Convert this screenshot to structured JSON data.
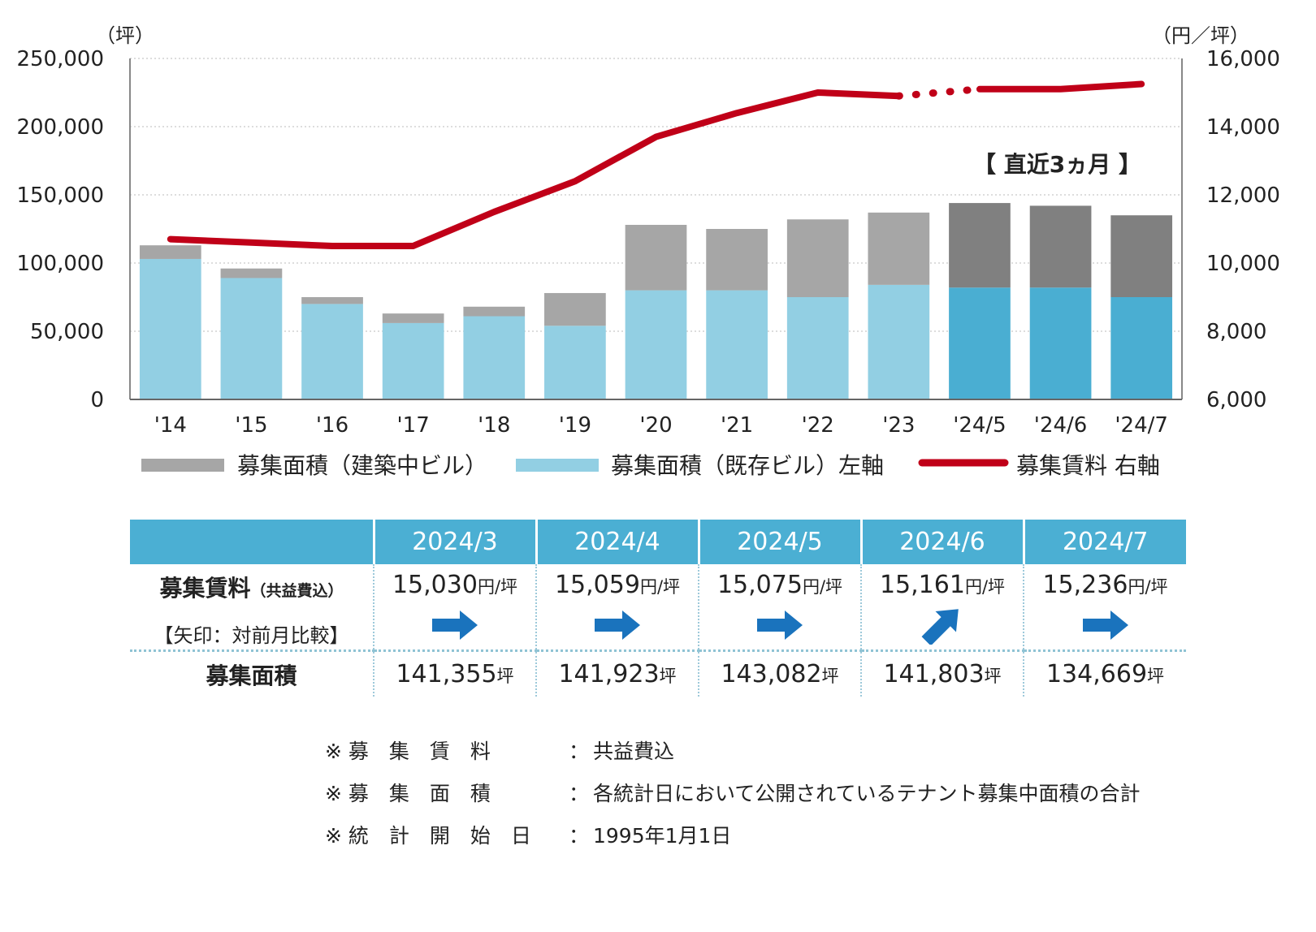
{
  "chart_data": {
    "type": "bar+line",
    "categories": [
      "'14",
      "'15",
      "'16",
      "'17",
      "'18",
      "'19",
      "'20",
      "'21",
      "'22",
      "'23",
      "'24/5",
      "'24/6",
      "'24/7"
    ],
    "series": [
      {
        "name": "募集面積（既存ビル）左軸",
        "type": "stacked-bar",
        "axis": "left",
        "values": [
          103000,
          89000,
          70000,
          56000,
          61000,
          54000,
          80000,
          80000,
          75000,
          84000,
          82000,
          82000,
          75000
        ]
      },
      {
        "name": "募集面積（建築中ビル）",
        "type": "stacked-bar",
        "axis": "left",
        "values": [
          10000,
          7000,
          5000,
          7000,
          7000,
          24000,
          48000,
          45000,
          57000,
          53000,
          62000,
          60000,
          60000
        ]
      },
      {
        "name": "募集賃料 右軸",
        "type": "line",
        "axis": "right",
        "values": [
          10700,
          10600,
          10500,
          10500,
          11500,
          12400,
          13700,
          14400,
          15000,
          14900,
          15100,
          15100,
          15250
        ]
      }
    ],
    "left_axis": {
      "unit": "（坪）",
      "ylim": [
        0,
        250000
      ],
      "ticks": [
        "0",
        "50,000",
        "100,000",
        "150,000",
        "200,000",
        "250,000"
      ]
    },
    "right_axis": {
      "unit": "（円／坪）",
      "ylim": [
        6000,
        16000
      ],
      "ticks": [
        "6,000",
        "8,000",
        "10,000",
        "12,000",
        "14,000",
        "16,000"
      ]
    },
    "legend": [
      "募集面積（建築中ビル）",
      "募集面積（既存ビル）左軸",
      "募集賃料 右軸"
    ],
    "annotation": "【 直近3ヵ月 】",
    "recent_period_start_index": 10,
    "colors": {
      "existing": "#92cfe3",
      "construction": "#a6a6a6",
      "existing_recent": "#4aaed2",
      "construction_recent": "#808080",
      "rent_line": "#c00018"
    }
  },
  "table": {
    "months": [
      "2024/3",
      "2024/4",
      "2024/5",
      "2024/6",
      "2024/7"
    ],
    "rent_label": "募集賃料",
    "rent_sublabel": "（共益費込）",
    "compare_label": "【矢印：対前月比較】",
    "area_label": "募集面積",
    "rent_values": [
      "15,030",
      "15,059",
      "15,075",
      "15,161",
      "15,236"
    ],
    "rent_unit": "円/坪",
    "area_values": [
      "141,355",
      "141,923",
      "143,082",
      "141,803",
      "134,669"
    ],
    "area_unit": "坪",
    "arrows": [
      "flat",
      "flat",
      "flat",
      "up",
      "flat"
    ],
    "colors": {
      "header": "#4bafd3",
      "arrow": "#1a73bd"
    }
  },
  "notes": [
    {
      "label": "※ 募　集　賃　料",
      "sep": "：",
      "text": "共益費込"
    },
    {
      "label": "※ 募　集　面　積",
      "sep": "：",
      "text": "各統計日において公開されているテナント募集中面積の合計"
    },
    {
      "label": "※ 統　計　開　始　日",
      "sep": "：",
      "text": "1995年1月1日"
    }
  ]
}
